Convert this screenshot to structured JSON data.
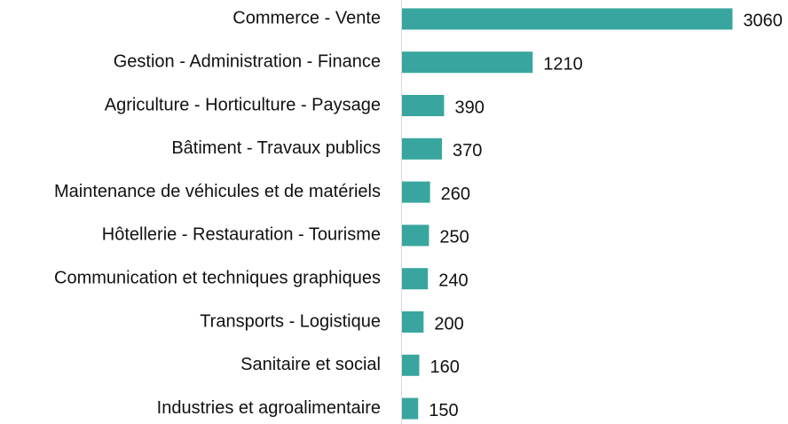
{
  "chart_data": {
    "type": "bar",
    "orientation": "horizontal",
    "categories": [
      "Commerce - Vente",
      "Gestion - Administration - Finance",
      "Agriculture - Horticulture - Paysage",
      "Bâtiment - Travaux publics",
      "Maintenance de véhicules et de matériels",
      "Hôtellerie - Restauration - Tourisme",
      "Communication et techniques graphiques",
      "Transports - Logistique",
      "Sanitaire et social",
      "Industries et agroalimentaire"
    ],
    "values": [
      3060,
      1210,
      390,
      370,
      260,
      250,
      240,
      200,
      160,
      150
    ],
    "color": "#38a69e",
    "xlim": [
      0,
      3500
    ]
  }
}
